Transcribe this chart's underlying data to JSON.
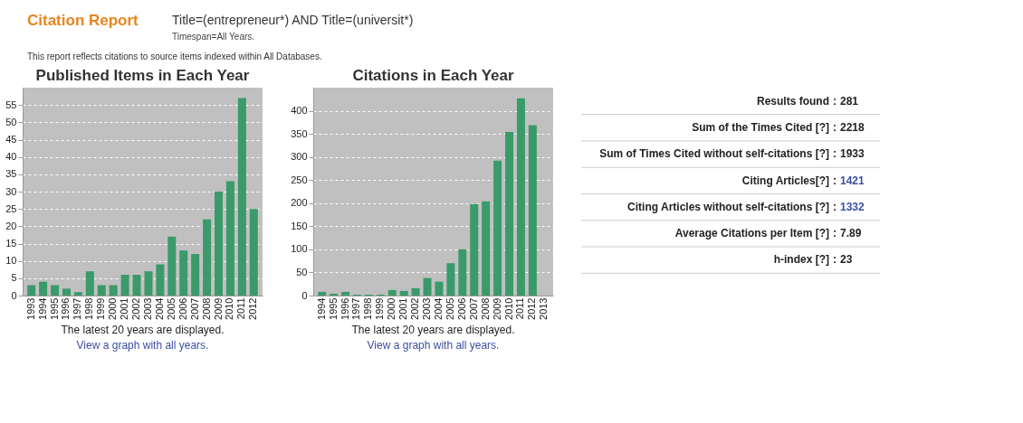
{
  "chart_data": [
    {
      "type": "bar",
      "title": "Published Items in Each Year",
      "categories": [
        "1993",
        "1994",
        "1995",
        "1996",
        "1997",
        "1998",
        "1999",
        "2000",
        "2001",
        "2002",
        "2003",
        "2004",
        "2005",
        "2006",
        "2007",
        "2008",
        "2009",
        "2010",
        "2011",
        "2012"
      ],
      "values": [
        3,
        4,
        3,
        2,
        1,
        7,
        3,
        3,
        6,
        6,
        7,
        9,
        17,
        13,
        12,
        22,
        30,
        33,
        57,
        25
      ],
      "color": "#3a9a6a",
      "ylim": [
        0,
        60
      ],
      "yticks": [
        0,
        5,
        10,
        15,
        20,
        25,
        30,
        35,
        40,
        45,
        50,
        55
      ],
      "grid": "y",
      "annotations": [
        "Citation Report",
        "Title=(entrepreneur*) AND Title=(universit*)",
        "Timespan=All Years.",
        "This report reflects citations to source items indexed within All Databases.",
        "The latest 20 years are displayed.",
        "View a graph with all years."
      ]
    },
    {
      "type": "bar",
      "title": "Citations in Each Year",
      "categories": [
        "1994",
        "1995",
        "1996",
        "1997",
        "1998",
        "1999",
        "2000",
        "2001",
        "2002",
        "2003",
        "2004",
        "2005",
        "2006",
        "2007",
        "2008",
        "2009",
        "2010",
        "2011",
        "2012",
        "2013"
      ],
      "values": [
        8,
        4,
        8,
        2,
        2,
        2,
        12,
        10,
        16,
        38,
        30,
        70,
        100,
        198,
        204,
        292,
        354,
        427,
        369,
        0
      ],
      "color": "#3a9a6a",
      "ylim": [
        0,
        450
      ],
      "yticks": [
        0,
        50,
        100,
        150,
        200,
        250,
        300,
        350,
        400
      ],
      "grid": "y",
      "annotations": [
        "The latest 20 years are displayed.",
        "View a graph with all years."
      ]
    },
    {
      "type": "other",
      "categories": [
        "Results found",
        "Sum of the Times Cited [?]",
        "Sum of Times Cited without self-citations [?]",
        "Citing Articles[?]",
        "Citing Articles without self-citations [?]",
        "Average Citations per Item [?]",
        "h-index [?]"
      ],
      "values": [
        281,
        2218,
        1933,
        1421,
        1332,
        7.89,
        23
      ],
      "colors": [
        "#222222",
        "#222222",
        "#222222",
        "#3b4fa0",
        "#3b4fa0",
        "#222222",
        "#222222"
      ],
      "data_labels": true,
      "annotations": [
        ":"
      ]
    }
  ]
}
